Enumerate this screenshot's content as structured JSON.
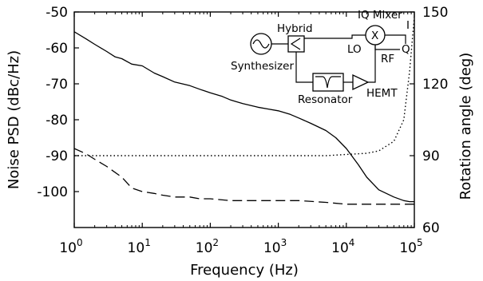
{
  "chart_data": {
    "type": "line",
    "xscale": "log",
    "xlabel": "Frequency (Hz)",
    "ylabel": "Noise PSD (dBc/Hz)",
    "y2label": "Rotation angle (deg)",
    "xlim": [
      1,
      100000
    ],
    "ylim": [
      -110,
      -50
    ],
    "y2lim": [
      60,
      150
    ],
    "x_ticks": [
      {
        "value": 1,
        "base": "10",
        "exp": "0"
      },
      {
        "value": 10,
        "base": "10",
        "exp": "1"
      },
      {
        "value": 100,
        "base": "10",
        "exp": "2"
      },
      {
        "value": 1000,
        "base": "10",
        "exp": "3"
      },
      {
        "value": 10000,
        "base": "10",
        "exp": "4"
      },
      {
        "value": 100000,
        "base": "10",
        "exp": "5"
      }
    ],
    "y_ticks": [
      -50,
      -60,
      -70,
      -80,
      -90,
      -100
    ],
    "y_tick_labels": [
      "-50",
      "-60",
      "-70",
      "-80",
      "-90",
      "-100"
    ],
    "y2_ticks": [
      150,
      120,
      90,
      60
    ],
    "y2_tick_labels": [
      "150",
      "120",
      "90",
      "60"
    ],
    "series": [
      {
        "style": "solid",
        "axis": "left",
        "x": [
          1,
          1.5,
          2,
          3,
          4,
          5,
          7,
          10,
          15,
          20,
          30,
          50,
          70,
          100,
          150,
          200,
          300,
          500,
          700,
          1000,
          1500,
          2000,
          3000,
          5000,
          7000,
          10000,
          15000,
          20000,
          30000,
          50000,
          70000,
          85000,
          100000
        ],
        "y": [
          -55.5,
          -57.5,
          -59,
          -61,
          -62.5,
          -63,
          -64.5,
          -65,
          -67,
          -68,
          -69.5,
          -70.5,
          -71.5,
          -72.5,
          -73.5,
          -74.5,
          -75.5,
          -76.5,
          -77,
          -77.5,
          -78.5,
          -79.5,
          -81,
          -83,
          -85,
          -88,
          -92.5,
          -96,
          -99.5,
          -101.5,
          -102.5,
          -102.8,
          -102.8
        ]
      },
      {
        "style": "dashed",
        "axis": "left",
        "x": [
          1,
          1.5,
          2,
          3,
          5,
          7,
          10,
          15,
          20,
          30,
          50,
          70,
          100,
          200,
          300,
          500,
          1000,
          2000,
          5000,
          10000,
          20000,
          50000,
          80000,
          100000
        ],
        "y": [
          -88,
          -89.5,
          -91,
          -93,
          -96,
          -99,
          -100,
          -100.5,
          -101,
          -101.5,
          -101.5,
          -102,
          -102,
          -102.5,
          -102.5,
          -102.5,
          -102.5,
          -102.5,
          -103,
          -103.5,
          -103.5,
          -103.5,
          -103.5,
          -103.5
        ]
      },
      {
        "style": "dotted",
        "axis": "right",
        "x": [
          1,
          10,
          100,
          1000,
          5000,
          10000,
          20000,
          30000,
          50000,
          70000,
          85000,
          100000
        ],
        "y": [
          90,
          90,
          90,
          90,
          90,
          90.5,
          91,
          92,
          96,
          105,
          125,
          148
        ]
      }
    ],
    "inset": {
      "labels": {
        "synthesizer": "Synthesizer",
        "hybrid": "Hybrid",
        "iq_mixer": "IQ Mixer",
        "mixer_symbol": "X",
        "lo": "LO",
        "rf": "RF",
        "i": "I",
        "q": "Q",
        "resonator": "Resonator",
        "hemt": "HEMT"
      }
    }
  }
}
